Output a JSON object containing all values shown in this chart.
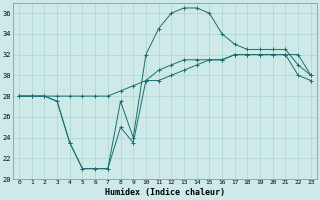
{
  "xlabel": "Humidex (Indice chaleur)",
  "bg_color": "#ceeae8",
  "grid_color": "#aed4d2",
  "line_color": "#1a6e6e",
  "xlim": [
    -0.5,
    23.5
  ],
  "ylim": [
    20,
    37
  ],
  "yticks": [
    20,
    22,
    24,
    26,
    28,
    30,
    32,
    34,
    36
  ],
  "xticks": [
    0,
    1,
    2,
    3,
    4,
    5,
    6,
    7,
    8,
    9,
    10,
    11,
    12,
    13,
    14,
    15,
    16,
    17,
    18,
    19,
    20,
    21,
    22,
    23
  ],
  "line1_x": [
    0,
    1,
    2,
    3,
    4,
    5,
    6,
    7,
    8,
    9,
    10,
    11,
    12,
    13,
    14,
    15,
    16,
    17,
    18,
    19,
    20,
    21,
    22,
    23
  ],
  "line1_y": [
    28,
    28,
    28,
    28,
    28,
    28,
    28,
    28,
    28.5,
    29,
    29.5,
    29.5,
    30,
    30.5,
    31,
    31.5,
    31.5,
    32,
    32,
    32,
    32,
    32,
    32,
    30
  ],
  "line2_x": [
    0,
    1,
    2,
    3,
    4,
    5,
    6,
    7,
    8,
    9,
    10,
    11,
    12,
    13,
    14,
    15,
    16,
    17,
    18,
    19,
    20,
    21,
    22,
    23
  ],
  "line2_y": [
    28,
    28,
    28,
    27.5,
    23.5,
    21,
    21,
    21,
    27.5,
    24,
    32,
    34.5,
    36,
    36.5,
    36.5,
    36,
    34,
    33,
    32.5,
    32.5,
    32.5,
    32.5,
    31,
    30
  ],
  "line3_x": [
    0,
    1,
    2,
    3,
    4,
    5,
    6,
    7,
    8,
    9,
    10,
    11,
    12,
    13,
    14,
    15,
    16,
    17,
    18,
    19,
    20,
    21,
    22,
    23
  ],
  "line3_y": [
    28,
    28,
    28,
    27.5,
    23.5,
    21,
    21,
    21,
    25,
    23.5,
    29.5,
    30.5,
    31,
    31.5,
    31.5,
    31.5,
    31.5,
    32,
    32,
    32,
    32,
    32,
    30,
    29.5
  ]
}
